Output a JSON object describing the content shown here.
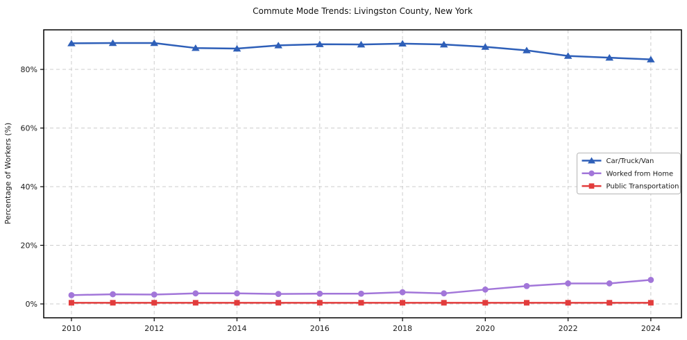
{
  "chart_data": {
    "type": "line",
    "title": "Commute Mode Trends: Livingston County, New York",
    "xlabel": "",
    "ylabel": "Percentage of Workers (%)",
    "x": [
      2010,
      2011,
      2012,
      2013,
      2014,
      2015,
      2016,
      2017,
      2018,
      2019,
      2020,
      2021,
      2022,
      2023,
      2024
    ],
    "series": [
      {
        "name": "Car/Truck/Van",
        "color": "#2e5fb8",
        "marker": "triangle",
        "values": [
          88.9,
          89.0,
          89.0,
          87.3,
          87.1,
          88.2,
          88.6,
          88.5,
          88.8,
          88.5,
          87.7,
          86.5,
          84.6,
          84.0,
          83.4
        ]
      },
      {
        "name": "Worked from Home",
        "color": "#a276d9",
        "marker": "circle",
        "values": [
          3.0,
          3.3,
          3.2,
          3.6,
          3.6,
          3.4,
          3.5,
          3.5,
          4.0,
          3.6,
          4.9,
          6.1,
          7.0,
          7.0,
          8.2
        ]
      },
      {
        "name": "Public Transportation",
        "color": "#e23c3c",
        "marker": "square",
        "values": [
          0.4,
          0.4,
          0.4,
          0.4,
          0.4,
          0.4,
          0.4,
          0.4,
          0.4,
          0.4,
          0.4,
          0.4,
          0.4,
          0.4,
          0.4
        ]
      }
    ],
    "xlim": [
      2009.33,
      2024.74
    ],
    "ylim": [
      -4.73,
      93.5
    ],
    "xticks": [
      2010,
      2012,
      2014,
      2016,
      2018,
      2020,
      2022,
      2024
    ],
    "yticks": [
      0,
      20,
      40,
      60,
      80
    ],
    "ytick_suffix": "%",
    "grid": "dashed",
    "grid_color": "#cccccc",
    "frame_color": "#000000",
    "tick_label_color": "#1a1a1a",
    "legend_position": "center right",
    "legend_border_color": "#b4b4b4",
    "legend_background": "#ffffff",
    "background": "#ffffff"
  }
}
